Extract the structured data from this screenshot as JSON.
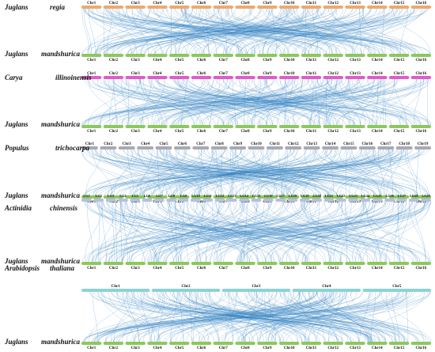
{
  "panels": [
    {
      "top_genus": "Juglans",
      "top_species": "regia",
      "top_color": "#f0a86c",
      "top_chroms": [
        "Chr1",
        "Chr2",
        "Chr3",
        "Chr4",
        "Chr5",
        "Chr6",
        "Chr7",
        "Chr8",
        "Chr9",
        "Chr10",
        "Chr11",
        "Chr12",
        "Chr13",
        "Chr14",
        "Chr15",
        "Chr16"
      ],
      "bottom_genus": "Juglans",
      "bottom_species": "mandshurica"
    },
    {
      "top_genus": "Carya",
      "top_species": "illinoinensis",
      "top_color": "#e05cc8",
      "top_chroms": [
        "Chr1",
        "Chr2",
        "Chr3",
        "Chr4",
        "Chr5",
        "Chr6",
        "Chr7",
        "Chr8",
        "Chr9",
        "Chr10",
        "Chr11",
        "Chr12",
        "Chr13",
        "Chr14",
        "Chr15",
        "Chr16"
      ],
      "bottom_genus": "Juglans",
      "bottom_species": "mandshurica"
    },
    {
      "top_genus": "Populus",
      "top_species": "trichocarpa",
      "top_color": "#a9a9b4",
      "top_chroms": [
        "Chr1",
        "Chr2",
        "Chr3",
        "Chr4",
        "Chr5",
        "Chr6",
        "Chr7",
        "Chr8",
        "Chr9",
        "Chr10",
        "Chr11",
        "Chr12",
        "Chr13",
        "Chr14",
        "Chr15",
        "Chr16",
        "Chr17",
        "Chr18",
        "Chr19"
      ],
      "bottom_genus": "Juglans",
      "bottom_species": "mandshurica"
    },
    {
      "top_genus": "Actinidia",
      "top_species": "chinensis",
      "top_color": "#b8bde0",
      "top_chroms": [
        "LG1",
        "LG2",
        "LG3",
        "LG4",
        "LG5",
        "LG6",
        "LG7",
        "LG8",
        "LG9",
        "LG10",
        "LG11",
        "LG12",
        "LG13",
        "LG14",
        "LG15",
        "LG16",
        "LG17",
        "LG18",
        "LG19",
        "LG20",
        "LG21",
        "LG22",
        "LG23",
        "LG24",
        "LG25",
        "LG26",
        "LG27",
        "LG28",
        "LG29"
      ],
      "bottom_genus": "Juglans",
      "bottom_species": "mandshurica"
    },
    {
      "top_genus": "Arabidopsis",
      "top_species": "thaliana",
      "top_color": "#8cd3d3",
      "top_chroms": [
        "Chr1",
        "Chr2",
        "Chr3",
        "Chr4",
        "Chr5"
      ],
      "bottom_genus": "Juglans",
      "bottom_species": "mandshurica"
    }
  ],
  "bottom_chroms": [
    "Chr1",
    "Chr2",
    "Chr3",
    "Chr4",
    "Chr5",
    "Chr6",
    "Chr7",
    "Chr8",
    "Chr9",
    "Chr10",
    "Chr11",
    "Chr12",
    "Chr13",
    "Chr14",
    "Chr15",
    "Chr16"
  ],
  "bottom_color": "#8cc85a",
  "link_color": "#2e7fbf"
}
